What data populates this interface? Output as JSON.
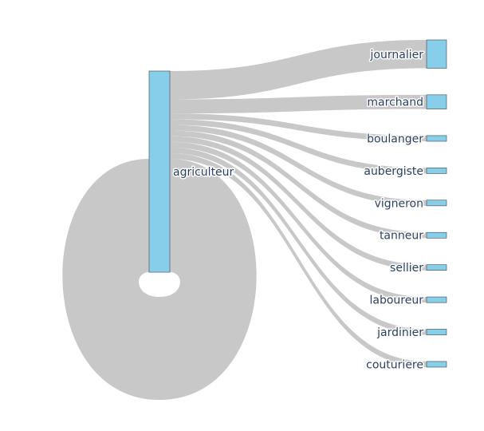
{
  "chart_data": {
    "type": "sankey",
    "colors": {
      "node_fill": "#87ceeb",
      "link": "#c8c8c8",
      "label": "#2a3f5f"
    },
    "source": {
      "label": "agriculteur"
    },
    "self_loop_value": 40,
    "targets": [
      {
        "label": "journalier",
        "value": 10
      },
      {
        "label": "marchand",
        "value": 5
      },
      {
        "label": "boulanger",
        "value": 2
      },
      {
        "label": "aubergiste",
        "value": 2
      },
      {
        "label": "vigneron",
        "value": 2
      },
      {
        "label": "tanneur",
        "value": 2
      },
      {
        "label": "sellier",
        "value": 2
      },
      {
        "label": "laboureur",
        "value": 2
      },
      {
        "label": "jardinier",
        "value": 2
      },
      {
        "label": "couturiere",
        "value": 2
      }
    ]
  }
}
